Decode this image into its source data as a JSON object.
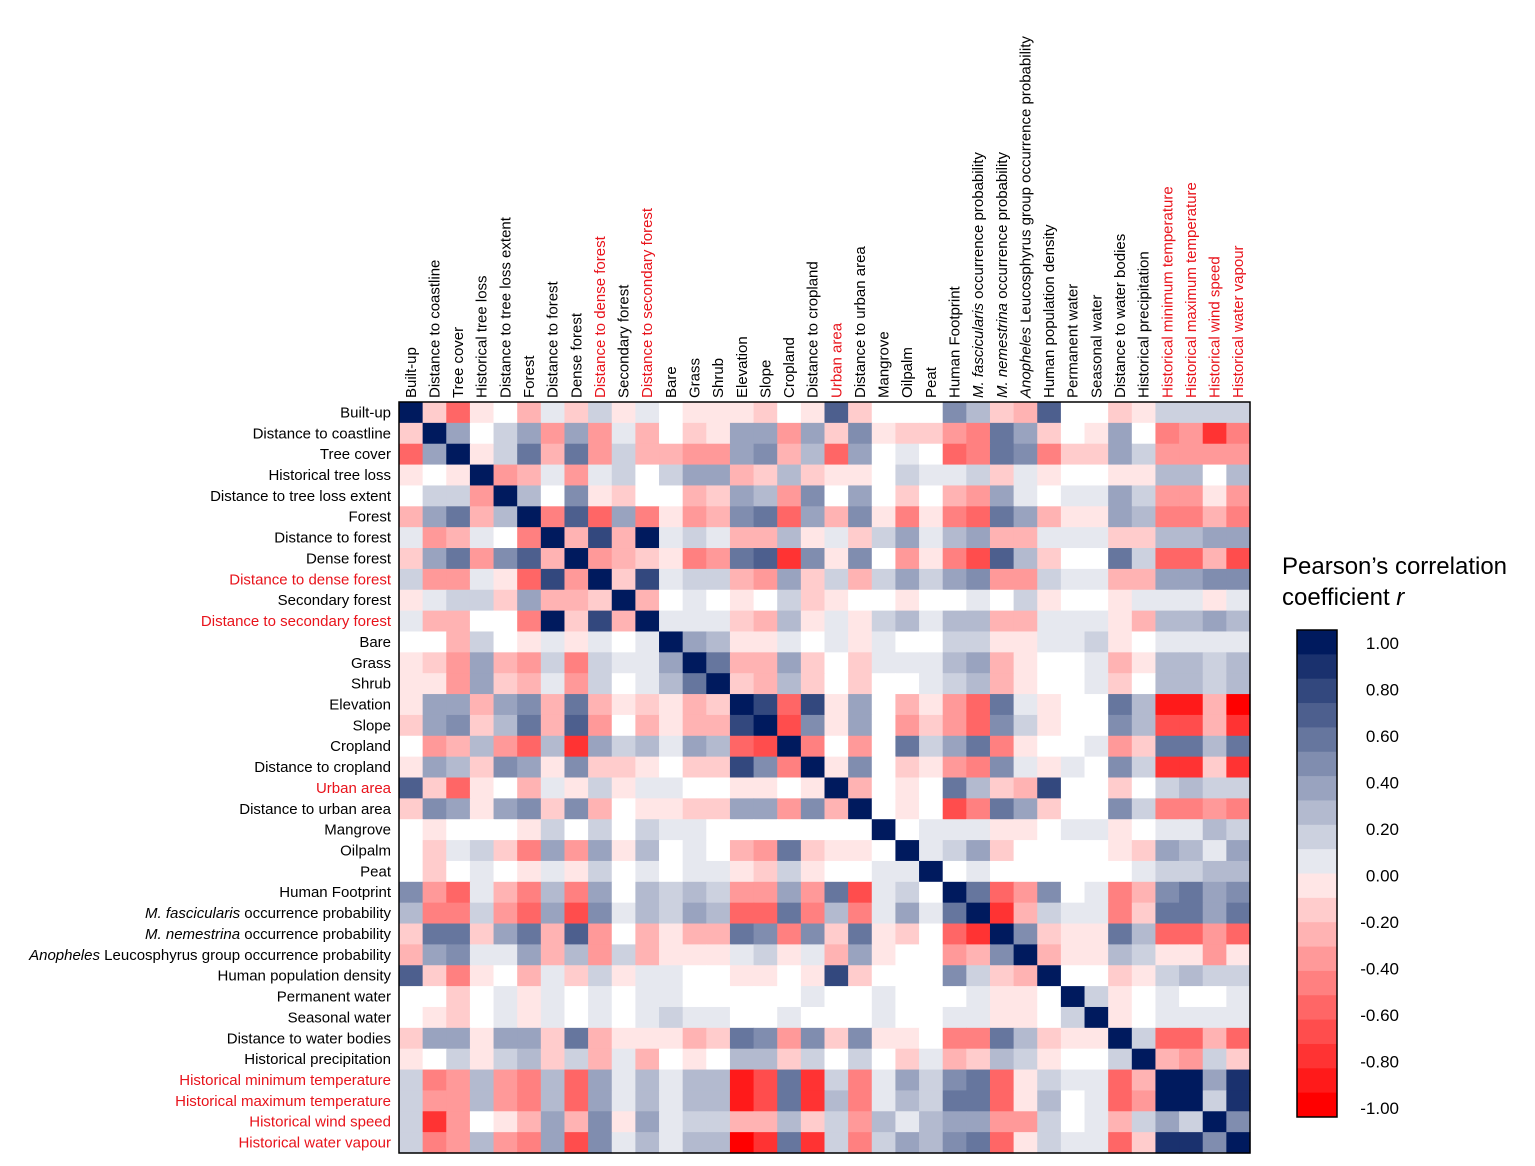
{
  "chart_data": {
    "type": "heatmap",
    "title": "",
    "labels": [
      {
        "text": "Built-up"
      },
      {
        "text": "Distance to coastline"
      },
      {
        "text": "Tree cover"
      },
      {
        "text": "Historical tree loss"
      },
      {
        "text": "Distance to tree loss extent"
      },
      {
        "text": "Forest"
      },
      {
        "text": "Distance to forest"
      },
      {
        "text": "Dense forest"
      },
      {
        "text": "Distance to dense forest",
        "highlight": true
      },
      {
        "text": "Secondary forest"
      },
      {
        "text": "Distance to secondary forest",
        "highlight": true
      },
      {
        "text": "Bare"
      },
      {
        "text": "Grass"
      },
      {
        "text": "Shrub"
      },
      {
        "text": "Elevation"
      },
      {
        "text": "Slope"
      },
      {
        "text": "Cropland"
      },
      {
        "text": "Distance to cropland"
      },
      {
        "text": "Urban area",
        "highlight": true
      },
      {
        "text": "Distance to urban area"
      },
      {
        "text": "Mangrove"
      },
      {
        "text": "Oilpalm"
      },
      {
        "text": "Peat"
      },
      {
        "text": "Human Footprint"
      },
      {
        "italic": "M. fascicularis",
        "text": " occurrence probability"
      },
      {
        "italic": "M. nemestrina",
        "text": " occurrence probability"
      },
      {
        "italic": "Anopheles",
        "text": " Leucosphyrus group occurrence probability"
      },
      {
        "text": "Human population density"
      },
      {
        "text": "Permanent water"
      },
      {
        "text": "Seasonal water"
      },
      {
        "text": "Distance to water bodies"
      },
      {
        "text": "Historical precipitation"
      },
      {
        "text": "Historical minimum temperature",
        "highlight": true
      },
      {
        "text": "Historical maximum temperature",
        "highlight": true
      },
      {
        "text": "Historical wind speed",
        "highlight": true
      },
      {
        "text": "Historical water vapour",
        "highlight": true
      }
    ],
    "values_lower_triangle": [
      [
        1
      ],
      [
        -0.2,
        1
      ],
      [
        -0.6,
        0.4,
        1
      ],
      [
        -0.1,
        0,
        -0.15,
        1
      ],
      [
        -0.05,
        0.2,
        0.2,
        -0.45,
        1
      ],
      [
        -0.3,
        0.4,
        0.6,
        -0.3,
        0.3,
        1
      ],
      [
        0.1,
        -0.4,
        -0.3,
        0.05,
        -0.05,
        -0.55,
        1
      ],
      [
        -0.2,
        0.4,
        0.55,
        -0.45,
        0.45,
        0.7,
        -0.35,
        1
      ],
      [
        0.2,
        -0.4,
        -0.4,
        0.1,
        -0.1,
        -0.6,
        0.8,
        -0.45,
        1
      ],
      [
        -0.1,
        0.05,
        0.15,
        0.2,
        -0.25,
        0.4,
        -0.3,
        -0.3,
        -0.25,
        1
      ],
      [
        0.1,
        -0.3,
        -0.3,
        0.02,
        0.02,
        -0.5,
        0.95,
        -0.25,
        0.8,
        -0.35,
        1
      ],
      [
        0,
        -0.05,
        -0.3,
        0.15,
        -0.05,
        -0.15,
        0.05,
        -0.15,
        0.05,
        0,
        0.05,
        1
      ],
      [
        -0.1,
        -0.2,
        -0.45,
        0.4,
        -0.3,
        -0.4,
        0.15,
        -0.5,
        0.2,
        0.05,
        0.1,
        0.4,
        1
      ],
      [
        -0.1,
        -0.15,
        -0.45,
        0.35,
        -0.25,
        -0.3,
        0.1,
        -0.4,
        0.15,
        0.02,
        0.05,
        0.3,
        0.55,
        1
      ],
      [
        -0.15,
        0.4,
        0.35,
        -0.3,
        0.4,
        0.45,
        -0.3,
        0.6,
        -0.35,
        -0.15,
        -0.2,
        -0.1,
        -0.3,
        -0.25,
        1
      ],
      [
        -0.25,
        0.4,
        0.45,
        -0.25,
        0.3,
        0.6,
        -0.35,
        0.7,
        -0.45,
        -0.05,
        -0.3,
        -0.1,
        -0.35,
        -0.3,
        0.75,
        1
      ],
      [
        0,
        -0.4,
        -0.3,
        0.3,
        -0.4,
        -0.6,
        0.3,
        -0.85,
        0.4,
        0.2,
        0.25,
        0.1,
        0.35,
        0.3,
        -0.65,
        -0.75,
        1
      ],
      [
        -0.1,
        0.4,
        0.3,
        -0.25,
        0.45,
        0.35,
        -0.15,
        0.5,
        -0.25,
        -0.2,
        -0.1,
        -0.05,
        -0.25,
        -0.2,
        0.75,
        0.5,
        -0.5,
        1
      ],
      [
        0.7,
        -0.2,
        -0.6,
        -0.1,
        0,
        -0.3,
        0.1,
        -0.15,
        0.15,
        -0.15,
        0.1,
        0.05,
        0.02,
        0.02,
        -0.15,
        -0.15,
        -0.05,
        -0.1,
        1
      ],
      [
        -0.25,
        0.5,
        0.4,
        -0.1,
        0.35,
        0.45,
        -0.2,
        0.5,
        -0.3,
        0,
        -0.15,
        -0.1,
        -0.25,
        -0.2,
        0.4,
        0.4,
        -0.45,
        0.45,
        -0.3,
        1
      ],
      [
        0.02,
        -0.15,
        -0.05,
        0,
        0.02,
        -0.1,
        0.15,
        -0.05,
        0.15,
        -0.05,
        0.15,
        0.05,
        0.1,
        0.02,
        -0.05,
        -0.05,
        -0.02,
        -0.02,
        0.02,
        -0.05,
        1
      ],
      [
        -0.05,
        -0.2,
        0.1,
        0.15,
        -0.25,
        -0.5,
        0.35,
        -0.45,
        0.4,
        -0.1,
        0.3,
        0,
        0.1,
        0,
        -0.3,
        -0.4,
        0.6,
        -0.25,
        -0.1,
        -0.15,
        -0.05,
        1
      ],
      [
        0,
        -0.25,
        0,
        0.05,
        -0.05,
        -0.1,
        0.1,
        -0.1,
        0.15,
        0,
        0.1,
        0.02,
        0.1,
        0.05,
        -0.15,
        -0.2,
        0.15,
        -0.1,
        0,
        -0.05,
        0.1,
        0.1,
        1
      ],
      [
        0.45,
        -0.4,
        -0.6,
        0.05,
        -0.3,
        -0.5,
        0.3,
        -0.5,
        0.4,
        0,
        0.25,
        0.2,
        0.25,
        0.2,
        -0.45,
        -0.45,
        0.4,
        -0.4,
        0.55,
        -0.7,
        0.05,
        0.2,
        0,
        1
      ],
      [
        0.25,
        -0.5,
        -0.5,
        0.2,
        -0.4,
        -0.6,
        0.35,
        -0.7,
        0.45,
        0.05,
        0.3,
        0.15,
        0.35,
        0.3,
        -0.65,
        -0.65,
        0.6,
        -0.5,
        0.25,
        -0.5,
        0.1,
        0.4,
        0.1,
        0.6,
        1
      ],
      [
        -0.25,
        0.55,
        0.55,
        -0.2,
        0.4,
        0.55,
        -0.3,
        0.65,
        -0.4,
        -0.05,
        -0.3,
        -0.1,
        -0.35,
        -0.3,
        0.6,
        0.5,
        -0.55,
        0.5,
        -0.25,
        0.55,
        -0.1,
        -0.25,
        -0.02,
        -0.6,
        -0.85,
        1
      ],
      [
        -0.3,
        0.35,
        0.5,
        0.05,
        0.05,
        0.4,
        -0.3,
        0.3,
        -0.4,
        0.15,
        -0.3,
        -0.1,
        -0.1,
        -0.1,
        0.1,
        0.2,
        -0.1,
        0.1,
        -0.3,
        0.35,
        -0.15,
        0,
        0.02,
        -0.4,
        -0.35,
        0.5,
        1
      ],
      [
        0.65,
        -0.2,
        -0.5,
        -0.1,
        0,
        -0.3,
        0.1,
        -0.2,
        0.15,
        -0.1,
        0.1,
        0.05,
        0.02,
        0.02,
        -0.15,
        -0.15,
        -0.05,
        -0.1,
        0.8,
        -0.25,
        0.02,
        -0.05,
        0,
        0.5,
        0.2,
        -0.25,
        -0.3,
        1
      ],
      [
        0,
        0,
        -0.2,
        -0.05,
        0.05,
        -0.1,
        0.05,
        -0.05,
        0.05,
        -0.02,
        0.05,
        0.05,
        0,
        -0.02,
        -0.02,
        -0.05,
        -0.05,
        0.05,
        0.02,
        0.02,
        0.05,
        -0.05,
        0,
        0,
        0.07,
        -0.1,
        -0.1,
        0.02,
        1
      ],
      [
        0,
        -0.1,
        -0.2,
        0,
        0.1,
        -0.1,
        0.1,
        -0.05,
        0.1,
        0,
        0.1,
        0.2,
        0.1,
        0.1,
        -0.05,
        -0.05,
        0.05,
        0,
        0.02,
        -0.02,
        0.05,
        -0.02,
        0,
        0.1,
        0.07,
        -0.1,
        -0.1,
        0.02,
        0.15,
        1
      ],
      [
        -0.2,
        0.4,
        0.4,
        -0.15,
        0.35,
        0.4,
        -0.2,
        0.55,
        -0.3,
        -0.1,
        -0.15,
        -0.15,
        -0.3,
        -0.25,
        0.6,
        0.5,
        -0.45,
        0.5,
        -0.2,
        0.5,
        -0.1,
        -0.15,
        -0.02,
        -0.5,
        -0.55,
        0.55,
        0.3,
        -0.2,
        -0.1,
        -0.1,
        1
      ],
      [
        -0.1,
        -0.05,
        0.15,
        -0.1,
        0.15,
        0.25,
        -0.25,
        0.2,
        -0.3,
        0.1,
        -0.3,
        -0.05,
        -0.1,
        -0.05,
        0.3,
        0.25,
        -0.2,
        0.2,
        -0.05,
        0.2,
        0,
        -0.2,
        0.05,
        -0.3,
        -0.25,
        0.3,
        0.15,
        -0.1,
        0.02,
        -0.05,
        0.2,
        1
      ],
      [
        0.2,
        -0.5,
        -0.45,
        0.25,
        -0.45,
        -0.5,
        0.3,
        -0.65,
        0.4,
        0.1,
        0.25,
        0.1,
        0.25,
        0.25,
        -0.95,
        -0.75,
        0.6,
        -0.8,
        0.2,
        -0.5,
        0.1,
        0.35,
        0.2,
        0.5,
        0.6,
        -0.6,
        -0.15,
        0.2,
        0.05,
        0.1,
        -0.6,
        -0.35,
        1
      ],
      [
        0.2,
        -0.45,
        -0.4,
        0.25,
        -0.4,
        -0.5,
        0.3,
        -0.65,
        0.4,
        0.1,
        0.25,
        0.1,
        0.25,
        0.25,
        -0.9,
        -0.75,
        0.55,
        -0.8,
        0.25,
        -0.5,
        0.05,
        0.3,
        0.15,
        0.55,
        0.6,
        -0.6,
        -0.15,
        0.25,
        0.03,
        0.1,
        -0.6,
        -0.4,
        0.95,
        1
      ],
      [
        0.2,
        -0.8,
        -0.4,
        -0.05,
        -0.1,
        -0.35,
        0.4,
        -0.3,
        0.45,
        -0.1,
        0.35,
        0.05,
        0.15,
        0.15,
        -0.3,
        -0.35,
        0.25,
        -0.2,
        0.2,
        -0.45,
        0.25,
        0.1,
        0.3,
        0.4,
        0.4,
        -0.4,
        -0.4,
        0.15,
        0.03,
        0.1,
        -0.3,
        0.2,
        0.35,
        0.2,
        1
      ],
      [
        0.2,
        -0.5,
        -0.45,
        0.25,
        -0.45,
        -0.55,
        0.35,
        -0.7,
        0.45,
        0.1,
        0.25,
        0.1,
        0.3,
        0.25,
        -1,
        -0.8,
        0.6,
        -0.8,
        0.2,
        -0.5,
        0.15,
        0.35,
        0.25,
        0.5,
        0.6,
        -0.6,
        -0.15,
        0.15,
        0.05,
        0.1,
        -0.6,
        -0.2,
        0.9,
        0.85,
        0.45,
        1
      ]
    ],
    "symmetric": true,
    "value_range": [
      -1,
      1
    ],
    "legend": {
      "title_line1": "Pearson’s correlation",
      "title_line2": "coefficient ",
      "title_italic": "r",
      "ticks": [
        "1.00",
        "0.80",
        "0.60",
        "0.40",
        "0.20",
        "0.00",
        "-0.20",
        "-0.40",
        "-0.60",
        "-0.80",
        "-1.00"
      ],
      "tick_values": [
        1,
        0.8,
        0.6,
        0.4,
        0.2,
        0,
        -0.2,
        -0.4,
        -0.6,
        -0.8,
        -1
      ],
      "placement": "right",
      "steps": 20
    },
    "colors": {
      "negative": "#ff0000",
      "zero": "#ffffff",
      "positive": "#001a5e",
      "highlight_label": "#e8131b",
      "label": "#000000"
    }
  }
}
